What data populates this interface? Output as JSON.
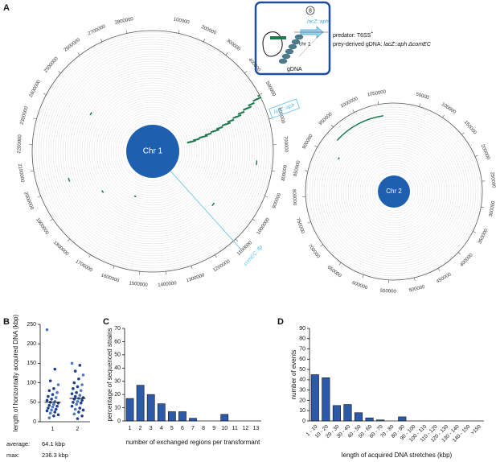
{
  "panel_labels": [
    "A",
    "B",
    "C",
    "D"
  ],
  "inset": {
    "number": "8",
    "construct": "lacZ::aph",
    "chromosome": "chr 1",
    "dna": "gDNA",
    "predator": "predator: T6SS",
    "predator_sup": "+",
    "prey": "prey-derived gDNA: ",
    "prey_genotype": "lacZ::aph ΔcomEC"
  },
  "circos": [
    {
      "label": "Chr 1",
      "xlim": [
        0,
        2900000
      ],
      "markers": [
        "lacZ::aph",
        "comEC::flp"
      ],
      "ticks": [
        100000,
        200000,
        300000,
        400000,
        500000,
        600000,
        700000,
        800000,
        900000,
        1000000,
        1100000,
        1200000,
        1300000,
        1400000,
        1500000,
        1600000,
        1700000,
        1800000,
        1900000,
        2000000,
        2100000,
        2200000,
        2300000,
        2400000,
        2500000,
        2600000,
        2700000,
        2800000
      ]
    },
    {
      "label": "Chr 2",
      "xlim": [
        0,
        1080000
      ],
      "markers": [],
      "ticks": [
        50000,
        100000,
        150000,
        200000,
        250000,
        300000,
        350000,
        400000,
        450000,
        500000,
        550000,
        600000,
        650000,
        700000,
        750000,
        800000,
        850000,
        900000,
        950000,
        1000000,
        1050000
      ]
    }
  ],
  "chart_data": [
    {
      "type": "strip",
      "ylabel": "length of horizontally acquired DNA (kbp)",
      "categories": [
        "1",
        "2"
      ],
      "points": [
        [
          236.3,
          135,
          105,
          95,
          85,
          80,
          75,
          70,
          65,
          62,
          58,
          55,
          52,
          50,
          48,
          45,
          42,
          40,
          38,
          35,
          32,
          30,
          28,
          25,
          22,
          18,
          15,
          10
        ],
        [
          150,
          145,
          130,
          120,
          110,
          100,
          95,
          90,
          85,
          80,
          75,
          72,
          68,
          65,
          62,
          60,
          58,
          55,
          52,
          50,
          48,
          45,
          40,
          35,
          32,
          30,
          25,
          20,
          15,
          8
        ]
      ],
      "medians": [
        50,
        60
      ],
      "color": "#1f3f8f",
      "ylim": [
        0,
        250
      ],
      "yticks": [
        0,
        50,
        100,
        150,
        200,
        250
      ],
      "annotations": [
        "average:",
        "64.1 kbp",
        "max:",
        "236.3 kbp"
      ]
    },
    {
      "type": "bar",
      "xlabel": "number of exchanged regions per transformant",
      "ylabel": "percentage of sequenced strains",
      "categories": [
        "1",
        "2",
        "3",
        "4",
        "5",
        "6",
        "7",
        "8",
        "9",
        "10",
        "11",
        "12",
        "13"
      ],
      "values": [
        17,
        27,
        20,
        13,
        7,
        7,
        2,
        0,
        0,
        5,
        0,
        0,
        0
      ],
      "color": "#2d5aa8",
      "ylim": [
        0,
        70
      ],
      "yticks": [
        0,
        10,
        20,
        30,
        40,
        50,
        60,
        70
      ]
    },
    {
      "type": "bar",
      "xlabel": "length of acquired DNA stretches (kbp)",
      "ylabel": "number of events",
      "categories": [
        "1 - 10",
        "10 - 20",
        "20 - 30",
        "30 - 40",
        "40 - 50",
        "50 - 60",
        "60 - 70",
        "70 - 80",
        "80 - 90",
        "90 - 100",
        "100 - 110",
        "110 - 120",
        "120 - 130",
        "130 - 140",
        "140 - 150",
        ">150"
      ],
      "values": [
        45,
        42,
        15,
        16,
        8,
        3,
        1,
        0,
        4,
        0,
        0,
        0,
        0,
        0,
        0,
        0
      ],
      "color": "#2d5aa8",
      "ylim": [
        0,
        90
      ],
      "yticks": [
        0,
        10,
        20,
        30,
        40,
        50,
        60,
        70,
        80,
        90
      ]
    }
  ]
}
